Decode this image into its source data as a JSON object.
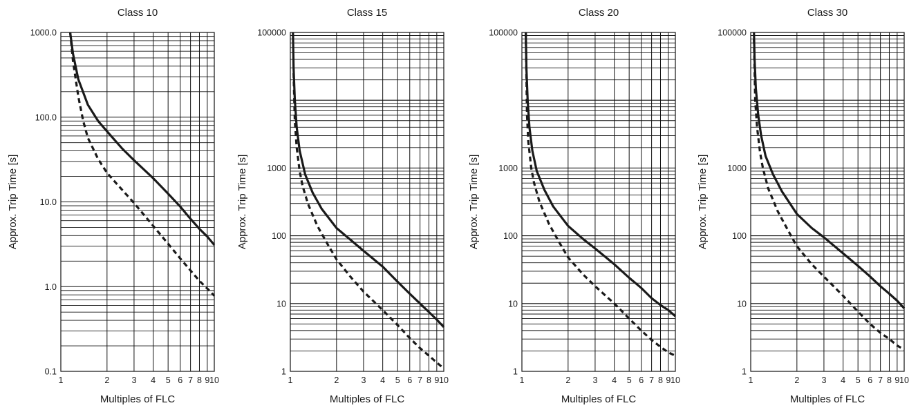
{
  "chart_data": [
    {
      "type": "line",
      "title": "Class 10",
      "xlabel": "Multiples of FLC",
      "ylabel": "Approx. Trip Time [s]",
      "x_scale": "log",
      "y_scale": "log",
      "xlim": [
        1,
        10
      ],
      "ylim": [
        0.1,
        1000
      ],
      "x_tick_labels": [
        "1",
        "2",
        "3",
        "4",
        "5",
        "6",
        "7",
        "8",
        "9",
        "10"
      ],
      "y_tick_labels": [
        "0.1",
        "1.0",
        "10.0",
        "100.0",
        "1000.0"
      ],
      "grid": true,
      "series": [
        {
          "style": "solid",
          "color": "#1a1a1a",
          "x": [
            1.15,
            1.2,
            1.3,
            1.5,
            1.75,
            2,
            2.5,
            3,
            4,
            5,
            6,
            7,
            8,
            9,
            10
          ],
          "y": [
            1000,
            560,
            280,
            140,
            90,
            68,
            43,
            31,
            19,
            12.5,
            8.8,
            6.3,
            4.8,
            3.9,
            3.1
          ]
        },
        {
          "style": "dashed",
          "color": "#1a1a1a",
          "x": [
            1.15,
            1.2,
            1.3,
            1.4,
            1.5,
            1.75,
            2,
            2.5,
            3,
            4,
            5,
            6,
            7,
            8,
            9,
            10
          ],
          "y": [
            1000,
            460,
            175,
            90,
            57,
            32,
            22,
            14,
            9.7,
            5.2,
            3.2,
            2.15,
            1.55,
            1.17,
            0.95,
            0.78
          ]
        }
      ]
    },
    {
      "type": "line",
      "title": "Class 15",
      "xlabel": "Multiples of FLC",
      "ylabel": "Approx. Trip Time [s]",
      "x_scale": "log",
      "y_scale": "log",
      "xlim": [
        1,
        10
      ],
      "ylim": [
        1,
        100000
      ],
      "x_tick_labels": [
        "1",
        "2",
        "3",
        "4",
        "5",
        "6",
        "7",
        "8",
        "9",
        "10"
      ],
      "y_tick_labels": [
        "1",
        "10",
        "100",
        "1000",
        "100000"
      ],
      "grid": true,
      "series": [
        {
          "style": "solid",
          "color": "#1a1a1a",
          "x": [
            1.04,
            1.05,
            1.07,
            1.1,
            1.15,
            1.25,
            1.4,
            1.6,
            2,
            2.5,
            3,
            4,
            5,
            6,
            7,
            8,
            9,
            10
          ],
          "y": [
            100000,
            30000,
            10000,
            4000,
            1800,
            800,
            430,
            250,
            130,
            85,
            60,
            35,
            21,
            14,
            10,
            7.5,
            5.8,
            4.5
          ]
        },
        {
          "style": "dashed",
          "color": "#1a1a1a",
          "x": [
            1.05,
            1.07,
            1.1,
            1.15,
            1.2,
            1.3,
            1.5,
            1.75,
            2,
            2.5,
            3,
            4,
            5,
            6,
            7,
            8,
            9,
            10
          ],
          "y": [
            25000,
            5000,
            2000,
            900,
            550,
            300,
            140,
            75,
            45,
            24,
            15,
            8,
            4.8,
            3.1,
            2.2,
            1.7,
            1.35,
            1.1
          ]
        }
      ]
    },
    {
      "type": "line",
      "title": "Class 20",
      "xlabel": "Multiples of FLC",
      "ylabel": "Approx. Trip Time [s]",
      "x_scale": "log",
      "y_scale": "log",
      "xlim": [
        1,
        10
      ],
      "ylim": [
        1,
        100000
      ],
      "x_tick_labels": [
        "1",
        "2",
        "3",
        "4",
        "5",
        "6",
        "7",
        "8",
        "9",
        "10"
      ],
      "y_tick_labels": [
        "1",
        "10",
        "100",
        "1000",
        "100000"
      ],
      "grid": true,
      "series": [
        {
          "style": "solid",
          "color": "#1a1a1a",
          "x": [
            1.06,
            1.07,
            1.09,
            1.12,
            1.17,
            1.25,
            1.4,
            1.6,
            2,
            2.5,
            3,
            4,
            5,
            6,
            7,
            8,
            9,
            10
          ],
          "y": [
            100000,
            30000,
            10000,
            4000,
            1800,
            900,
            480,
            270,
            140,
            90,
            65,
            38,
            24,
            17,
            12,
            9.5,
            8,
            6.5
          ]
        },
        {
          "style": "dashed",
          "color": "#1a1a1a",
          "x": [
            1.06,
            1.08,
            1.1,
            1.15,
            1.2,
            1.3,
            1.5,
            1.75,
            2,
            2.5,
            3,
            4,
            5,
            6,
            7,
            8,
            9,
            10
          ],
          "y": [
            100000,
            6000,
            2500,
            1000,
            600,
            320,
            150,
            80,
            48,
            27,
            18,
            10,
            6,
            4,
            2.9,
            2.3,
            1.9,
            1.7
          ]
        }
      ]
    },
    {
      "type": "line",
      "title": "Class 30",
      "xlabel": "Multiples of FLC",
      "ylabel": "Approx. Trip Time [s]",
      "x_scale": "log",
      "y_scale": "log",
      "xlim": [
        1,
        10
      ],
      "ylim": [
        1,
        100000
      ],
      "x_tick_labels": [
        "1",
        "2",
        "3",
        "4",
        "5",
        "6",
        "7",
        "8",
        "9",
        "10"
      ],
      "y_tick_labels": [
        "1",
        "10",
        "100",
        "1000",
        "100000"
      ],
      "grid": true,
      "series": [
        {
          "style": "solid",
          "color": "#1a1a1a",
          "x": [
            1.05,
            1.06,
            1.08,
            1.12,
            1.17,
            1.25,
            1.4,
            1.6,
            2,
            2.5,
            3,
            4,
            5,
            6,
            7,
            8,
            9,
            10
          ],
          "y": [
            100000,
            40000,
            15000,
            6000,
            3000,
            1500,
            800,
            450,
            210,
            130,
            95,
            55,
            36,
            25,
            18,
            14,
            11,
            8.5
          ]
        },
        {
          "style": "dashed",
          "color": "#1a1a1a",
          "x": [
            1.05,
            1.07,
            1.1,
            1.15,
            1.2,
            1.3,
            1.5,
            1.75,
            2,
            2.5,
            3,
            4,
            5,
            6,
            7,
            8,
            9,
            10
          ],
          "y": [
            80000,
            10000,
            4000,
            1700,
            1000,
            500,
            230,
            120,
            70,
            38,
            25,
            13,
            7.6,
            5,
            3.7,
            3,
            2.4,
            2.1
          ]
        }
      ]
    }
  ]
}
